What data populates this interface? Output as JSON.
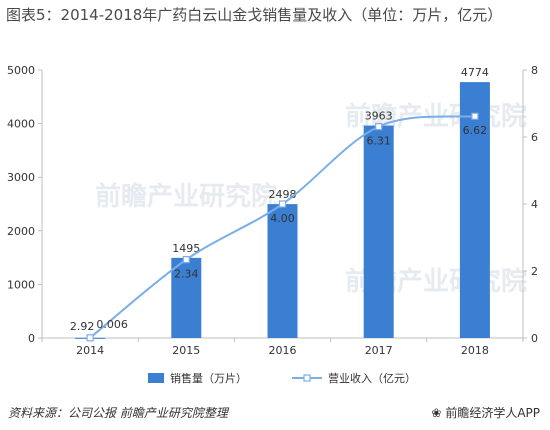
{
  "header": {
    "title": "图表5：2014-2018年广药白云山金戈销售量及收入（单位：万片，亿元）"
  },
  "footer": {
    "source": "资料来源：公司公报  前瞻产业研究院整理",
    "brand": "前瞻经济学人APP",
    "brand_icon": "paw-icon"
  },
  "watermark": {
    "text": "前瞻产业研究院"
  },
  "chart_data": {
    "type": "bar",
    "categories": [
      "2014",
      "2015",
      "2016",
      "2017",
      "2018"
    ],
    "series": [
      {
        "name": "销售量（万片）",
        "type": "bar",
        "axis": "left",
        "values": [
          2.92,
          1495,
          2498,
          3963,
          4774
        ],
        "labels": [
          "2.92",
          "1495",
          "2498",
          "3963",
          "4774"
        ],
        "color": "#3b7fd3"
      },
      {
        "name": "营业收入（亿元）",
        "type": "line",
        "axis": "right",
        "values": [
          0.006,
          2.34,
          4.0,
          6.31,
          6.62
        ],
        "labels": [
          "0.006",
          "2.34",
          "4.00",
          "6.31",
          "6.62"
        ],
        "color": "#7aaee6"
      }
    ],
    "y_left": {
      "min": 0,
      "max": 5000,
      "ticks": [
        0,
        1000,
        2000,
        3000,
        4000,
        5000
      ]
    },
    "y_right": {
      "min": 0,
      "max": 8,
      "ticks": [
        0,
        2,
        4,
        6,
        8
      ]
    },
    "grid": false,
    "legend": "bottom"
  }
}
